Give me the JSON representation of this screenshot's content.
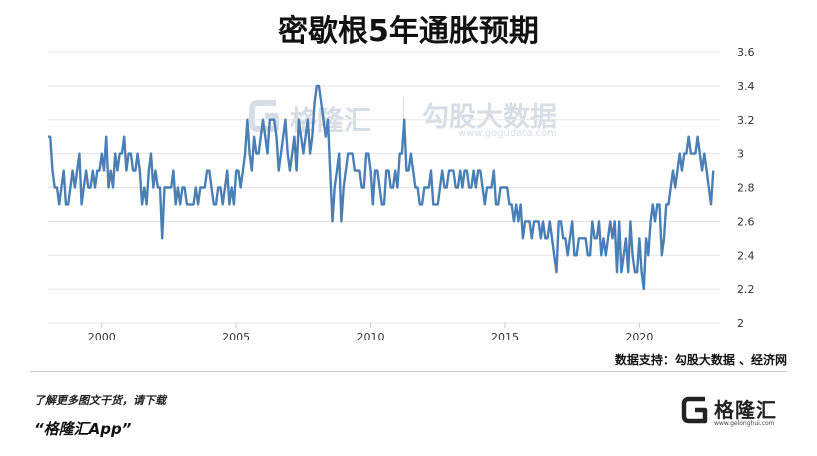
{
  "header": {
    "title": "密歇根5年通胀预期"
  },
  "footer": {
    "source": "数据支持：勾股大数据 、经济网",
    "promo": "了解更多图文干货，请下载",
    "app_name": "“格隆汇App”",
    "brand_name": "格隆汇",
    "brand_url": "www.gelonghui.com"
  },
  "watermark": {
    "name": "格隆汇",
    "brand": "勾股大数据",
    "url": "www.gogudata.com"
  },
  "chart_data": {
    "type": "line",
    "title": "密歇根5年通胀预期",
    "xlabel": "",
    "ylabel": "",
    "xlim": [
      1998.0,
      2023.0
    ],
    "ylim": [
      2.0,
      3.6
    ],
    "x_ticks": [
      2000,
      2005,
      2010,
      2015,
      2020
    ],
    "y_ticks": [
      "2",
      "2.2",
      "2.4",
      "2.6",
      "2.8",
      "3",
      "3.2",
      "3.4",
      "3.6"
    ],
    "y_axis_position": "right",
    "grid": "horizontal",
    "line_color": "#4a7fb5",
    "series": [
      {
        "x": [
          1998.0,
          1998.083,
          1998.167,
          1998.25,
          1998.333,
          1998.417,
          1998.5,
          1998.583,
          1998.667,
          1998.75,
          1998.833,
          1998.917,
          1999.0,
          1999.083,
          1999.167,
          1999.25,
          1999.333,
          1999.417,
          1999.5,
          1999.583,
          1999.667,
          1999.75,
          1999.833,
          1999.917,
          2000.0,
          2000.083,
          2000.167,
          2000.25,
          2000.333,
          2000.417,
          2000.5,
          2000.583,
          2000.667,
          2000.75,
          2000.833,
          2000.917,
          2001.0,
          2001.083,
          2001.167,
          2001.25,
          2001.333,
          2001.417,
          2001.5,
          2001.583,
          2001.667,
          2001.75,
          2001.833,
          2001.917,
          2002.0,
          2002.083,
          2002.167,
          2002.25,
          2002.333,
          2002.417,
          2002.5,
          2002.583,
          2002.667,
          2002.75,
          2002.833,
          2002.917,
          2003.0,
          2003.083,
          2003.167,
          2003.25,
          2003.333,
          2003.417,
          2003.5,
          2003.583,
          2003.667,
          2003.75,
          2003.833,
          2003.917,
          2004.0,
          2004.083,
          2004.167,
          2004.25,
          2004.333,
          2004.417,
          2004.5,
          2004.583,
          2004.667,
          2004.75,
          2004.833,
          2004.917,
          2005.0,
          2005.083,
          2005.167,
          2005.25,
          2005.333,
          2005.417,
          2005.5,
          2005.583,
          2005.667,
          2005.75,
          2005.833,
          2005.917,
          2006.0,
          2006.083,
          2006.167,
          2006.25,
          2006.333,
          2006.417,
          2006.5,
          2006.583,
          2006.667,
          2006.75,
          2006.833,
          2006.917,
          2007.0,
          2007.083,
          2007.167,
          2007.25,
          2007.333,
          2007.417,
          2007.5,
          2007.583,
          2007.667,
          2007.75,
          2007.833,
          2007.917,
          2008.0,
          2008.083,
          2008.167,
          2008.25,
          2008.333,
          2008.417,
          2008.5,
          2008.583,
          2008.667,
          2008.75,
          2008.833,
          2008.917,
          2009.0,
          2009.083,
          2009.167,
          2009.25,
          2009.333,
          2009.417,
          2009.5,
          2009.583,
          2009.667,
          2009.75,
          2009.833,
          2009.917,
          2010.0,
          2010.083,
          2010.167,
          2010.25,
          2010.333,
          2010.417,
          2010.5,
          2010.583,
          2010.667,
          2010.75,
          2010.833,
          2010.917,
          2011.0,
          2011.083,
          2011.167,
          2011.25,
          2011.333,
          2011.417,
          2011.5,
          2011.583,
          2011.667,
          2011.75,
          2011.833,
          2011.917,
          2012.0,
          2012.083,
          2012.167,
          2012.25,
          2012.333,
          2012.417,
          2012.5,
          2012.583,
          2012.667,
          2012.75,
          2012.833,
          2012.917,
          2013.0,
          2013.083,
          2013.167,
          2013.25,
          2013.333,
          2013.417,
          2013.5,
          2013.583,
          2013.667,
          2013.75,
          2013.833,
          2013.917,
          2014.0,
          2014.083,
          2014.167,
          2014.25,
          2014.333,
          2014.417,
          2014.5,
          2014.583,
          2014.667,
          2014.75,
          2014.833,
          2014.917,
          2015.0,
          2015.083,
          2015.167,
          2015.25,
          2015.333,
          2015.417,
          2015.5,
          2015.583,
          2015.667,
          2015.75,
          2015.833,
          2015.917,
          2016.0,
          2016.083,
          2016.167,
          2016.25,
          2016.333,
          2016.417,
          2016.5,
          2016.583,
          2016.667,
          2016.75,
          2016.833,
          2016.917,
          2017.0,
          2017.083,
          2017.167,
          2017.25,
          2017.333,
          2017.417,
          2017.5,
          2017.583,
          2017.667,
          2017.75,
          2017.833,
          2017.917,
          2018.0,
          2018.083,
          2018.167,
          2018.25,
          2018.333,
          2018.417,
          2018.5,
          2018.583,
          2018.667,
          2018.75,
          2018.833,
          2018.917,
          2019.0,
          2019.083,
          2019.167,
          2019.25,
          2019.333,
          2019.417,
          2019.5,
          2019.583,
          2019.667,
          2019.75,
          2019.833,
          2019.917,
          2020.0,
          2020.083,
          2020.167,
          2020.25,
          2020.333,
          2020.417,
          2020.5,
          2020.583,
          2020.667,
          2020.75,
          2020.833,
          2020.917,
          2021.0,
          2021.083,
          2021.167,
          2021.25,
          2021.333,
          2021.417,
          2021.5,
          2021.583,
          2021.667,
          2021.75,
          2021.833,
          2021.917,
          2022.0,
          2022.083,
          2022.167,
          2022.25,
          2022.333,
          2022.417,
          2022.5,
          2022.583,
          2022.667,
          2022.75
        ],
        "y": [
          3.1,
          3.1,
          2.9,
          2.8,
          2.8,
          2.7,
          2.8,
          2.9,
          2.7,
          2.7,
          2.8,
          2.9,
          2.8,
          2.9,
          3.0,
          2.7,
          2.8,
          2.9,
          2.8,
          2.8,
          2.9,
          2.8,
          2.9,
          2.9,
          3.0,
          2.9,
          3.1,
          2.8,
          2.9,
          2.8,
          3.0,
          2.9,
          3.0,
          3.0,
          3.1,
          2.9,
          3.0,
          3.0,
          2.9,
          2.9,
          3.0,
          2.9,
          2.7,
          2.8,
          2.7,
          2.9,
          3.0,
          2.8,
          2.9,
          2.8,
          2.8,
          2.5,
          2.8,
          2.8,
          2.8,
          2.8,
          2.9,
          2.7,
          2.8,
          2.7,
          2.8,
          2.8,
          2.7,
          2.7,
          2.7,
          2.7,
          2.8,
          2.7,
          2.8,
          2.8,
          2.8,
          2.9,
          2.9,
          2.8,
          2.7,
          2.7,
          2.8,
          2.8,
          2.7,
          2.8,
          2.9,
          2.7,
          2.8,
          2.7,
          2.9,
          2.9,
          2.8,
          2.9,
          3.0,
          3.2,
          3.0,
          2.9,
          3.1,
          3.0,
          3.0,
          3.1,
          3.2,
          3.1,
          3.0,
          3.2,
          3.2,
          3.2,
          3.1,
          2.9,
          3.0,
          3.1,
          3.2,
          3.0,
          2.9,
          3.0,
          3.1,
          2.9,
          3.2,
          3.1,
          3.0,
          3.1,
          3.2,
          3.0,
          3.1,
          3.3,
          3.4,
          3.4,
          3.3,
          3.2,
          3.1,
          3.2,
          2.9,
          2.6,
          2.8,
          2.9,
          3.0,
          2.6,
          2.8,
          2.9,
          3.0,
          3.0,
          3.0,
          2.9,
          2.9,
          2.9,
          2.8,
          2.8,
          3.0,
          3.0,
          2.9,
          2.7,
          2.9,
          2.9,
          2.8,
          2.7,
          2.7,
          2.9,
          2.9,
          2.8,
          2.8,
          2.9,
          2.8,
          3.0,
          3.0,
          3.2,
          2.9,
          2.9,
          3.0,
          2.9,
          2.8,
          2.8,
          2.7,
          2.7,
          2.8,
          2.8,
          2.8,
          2.9,
          2.7,
          2.7,
          2.7,
          2.8,
          2.9,
          2.8,
          2.8,
          2.9,
          2.9,
          2.9,
          2.8,
          2.8,
          2.9,
          2.8,
          2.9,
          2.9,
          2.8,
          2.8,
          2.9,
          2.8,
          2.9,
          2.9,
          2.8,
          2.7,
          2.8,
          2.8,
          2.8,
          2.9,
          2.7,
          2.7,
          2.8,
          2.8,
          2.8,
          2.8,
          2.7,
          2.7,
          2.6,
          2.7,
          2.6,
          2.7,
          2.5,
          2.6,
          2.6,
          2.6,
          2.5,
          2.6,
          2.6,
          2.6,
          2.5,
          2.6,
          2.5,
          2.5,
          2.6,
          2.5,
          2.4,
          2.3,
          2.6,
          2.6,
          2.5,
          2.5,
          2.4,
          2.5,
          2.6,
          2.4,
          2.4,
          2.5,
          2.5,
          2.5,
          2.5,
          2.4,
          2.4,
          2.6,
          2.5,
          2.5,
          2.6,
          2.4,
          2.5,
          2.4,
          2.5,
          2.6,
          2.5,
          2.6,
          2.3,
          2.6,
          2.3,
          2.4,
          2.5,
          2.3,
          2.6,
          2.4,
          2.3,
          2.3,
          2.5,
          2.3,
          2.2,
          2.5,
          2.4,
          2.6,
          2.7,
          2.6,
          2.7,
          2.7,
          2.4,
          2.5,
          2.7,
          2.7,
          2.8,
          2.9,
          2.8,
          2.9,
          3.0,
          2.9,
          3.0,
          3.0,
          3.1,
          3.0,
          3.0,
          3.0,
          3.1,
          3.0,
          2.9,
          3.0,
          2.9,
          2.8,
          2.7,
          2.9
        ]
      }
    ]
  }
}
